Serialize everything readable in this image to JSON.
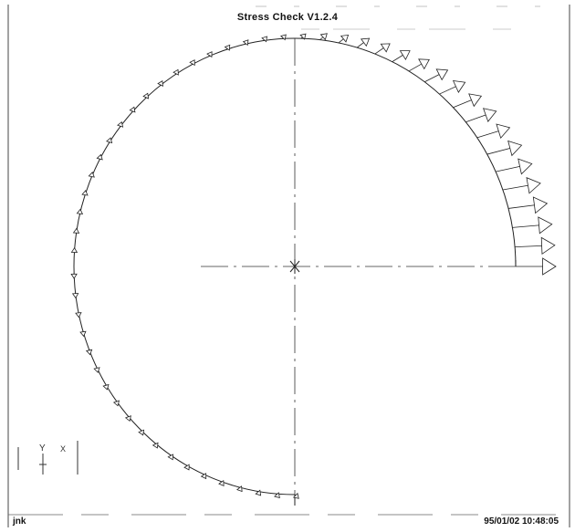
{
  "app": {
    "title": "Stress Check V1.2.4"
  },
  "footer": {
    "user": "jnk",
    "timestamp": "95/01/02 10:48:05"
  },
  "triad": {
    "y_label": "Y",
    "x_label": "X"
  },
  "colors": {
    "ink": "#222222",
    "background": "#ffffff"
  },
  "icons": {
    "arrow": "hollow-arrow-icon",
    "origin": "origin-marker-icon"
  }
}
